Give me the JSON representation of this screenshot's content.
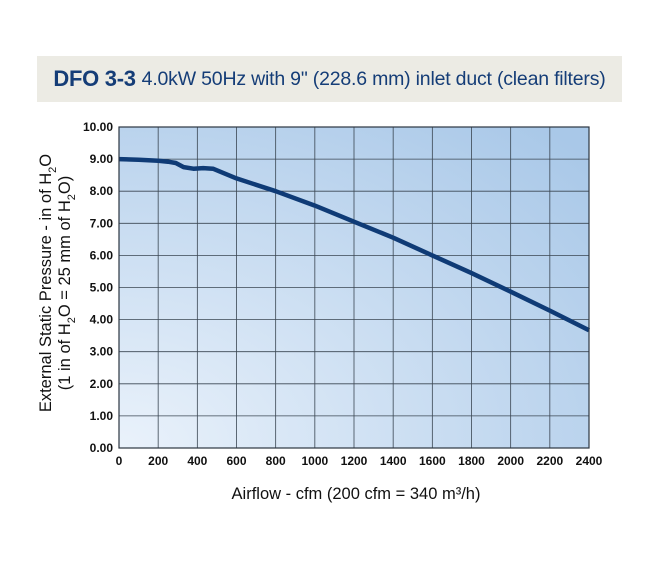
{
  "title": {
    "model": "DFO 3-3",
    "text": "4.0kW 50Hz with 9\" (228.6 mm) inlet duct (clean filters)"
  },
  "chart_data": {
    "type": "line",
    "xlabel": "Airflow - cfm (200 cfm = 340 m³/h)",
    "ylabel": {
      "line1_main": "External Static Pressure - in of H",
      "line1_sub": "2",
      "line1_end": "O",
      "line2_a": "(1 in of H",
      "line2_sub1": "2",
      "line2_b": "O = 25 mm of H",
      "line2_sub2": "2",
      "line2_c": "O)"
    },
    "xlim": [
      0,
      2400
    ],
    "ylim": [
      0,
      10
    ],
    "x_ticks": [
      "0",
      "200",
      "400",
      "600",
      "800",
      "1000",
      "1200",
      "1400",
      "1600",
      "1800",
      "2000",
      "2200",
      "2400"
    ],
    "y_ticks": [
      "0.00",
      "1.00",
      "2.00",
      "3.00",
      "4.00",
      "5.00",
      "6.00",
      "7.00",
      "8.00",
      "9.00",
      "10.00"
    ],
    "grid": true,
    "series": [
      {
        "x": [
          0,
          100,
          200,
          250,
          290,
          330,
          380,
          430,
          480,
          520,
          600,
          800,
          1000,
          1200,
          1400,
          1600,
          1800,
          2000,
          2200,
          2400
        ],
        "y": [
          9.0,
          8.98,
          8.95,
          8.92,
          8.88,
          8.75,
          8.7,
          8.72,
          8.7,
          8.6,
          8.4,
          8.0,
          7.55,
          7.05,
          6.55,
          6.0,
          5.45,
          4.87,
          4.28,
          3.67
        ]
      }
    ],
    "colors": {
      "line": "#0f3b76",
      "plot_bg_light": "#eaf2fb",
      "plot_bg_dark": "#a9c8e8",
      "grid": "#3a4652"
    }
  }
}
